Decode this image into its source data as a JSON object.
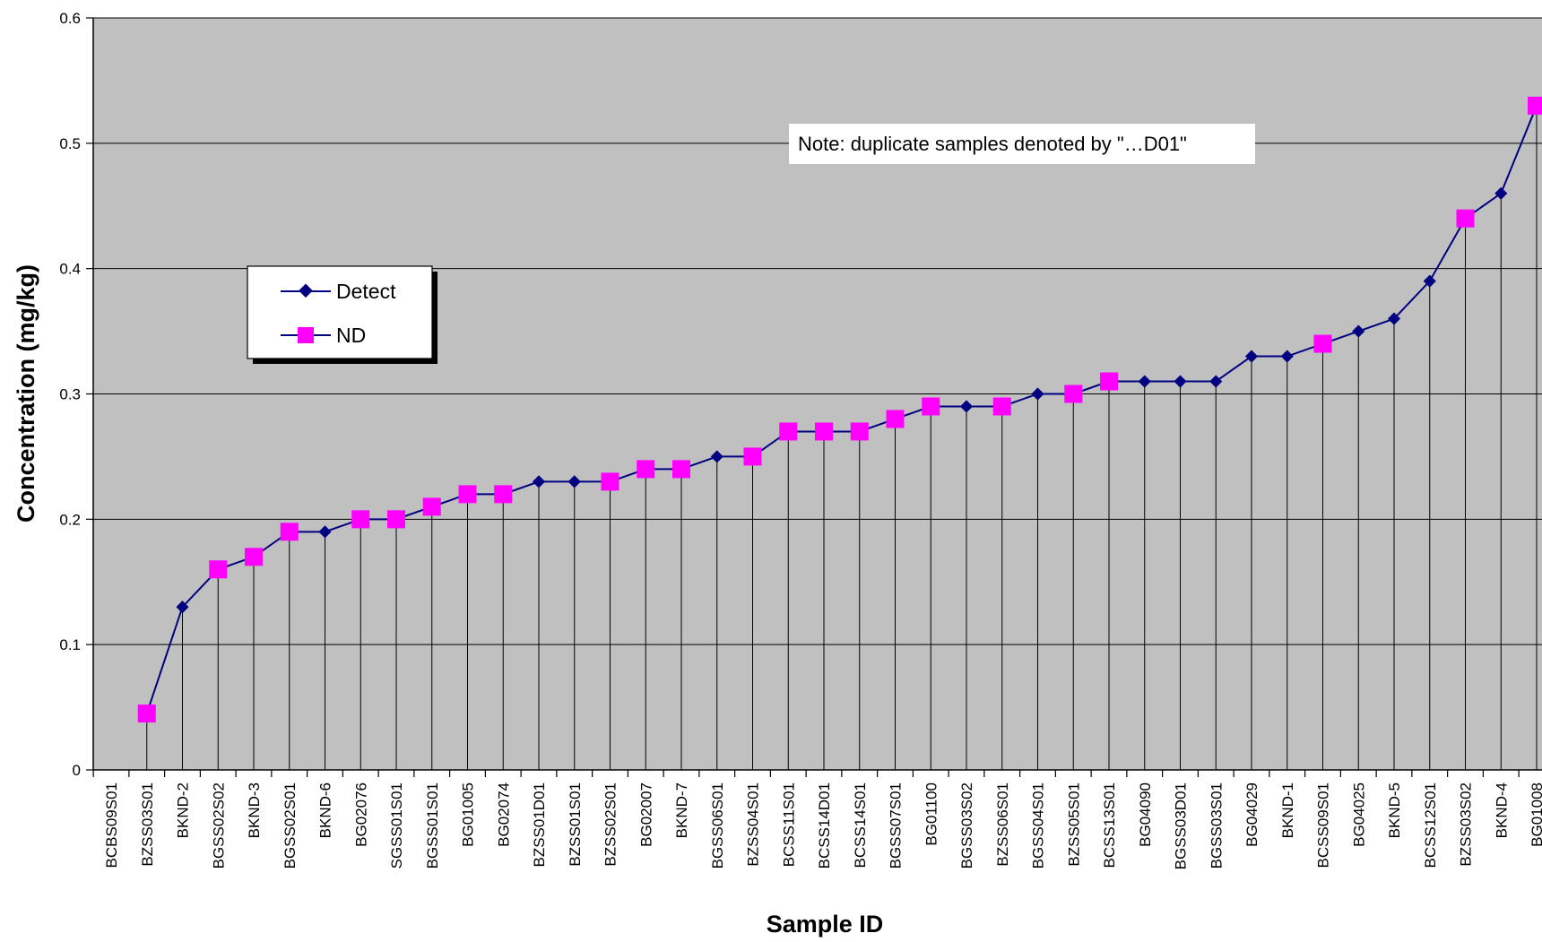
{
  "chart_data": {
    "type": "line",
    "title": "",
    "xlabel": "Sample ID",
    "ylabel": "Concentration (mg/kg)",
    "ylim": [
      0,
      0.6
    ],
    "yticks": [
      "0",
      "0.1",
      "0.2",
      "0.3",
      "0.4",
      "0.5",
      "0.6"
    ],
    "grid": "horizontal",
    "drop_lines": true,
    "legend_position": "upper-left",
    "note": "Note: duplicate samples denoted by \"…D01\"",
    "colors": {
      "plot_background": "#c0c0c0",
      "line": "#000080",
      "detect_marker": "#000080",
      "nd_marker": "#ff00ff",
      "drop_line": "#000000",
      "grid": "#000000"
    },
    "categories": [
      "BCBS09S01",
      "BZSS03S01",
      "BKND-2",
      "BGSS02S02",
      "BKND-3",
      "BGSS02S01",
      "BKND-6",
      "BG02076",
      "SGSS01S01",
      "BGSS01S01",
      "BG01005",
      "BG02074",
      "BZSS01D01",
      "BZSS01S01",
      "BZSS02S01",
      "BG02007",
      "BKND-7",
      "BGSS06S01",
      "BZSS04S01",
      "BCSS11S01",
      "BCSS14D01",
      "BCSS14S01",
      "BGSS07S01",
      "BG01100",
      "BGSS03S02",
      "BZSS06S01",
      "BGSS04S01",
      "BZSS05S01",
      "BCSS13S01",
      "BG04090",
      "BGSS03D01",
      "BGSS03S01",
      "BG04029",
      "BKND-1",
      "BCSS09S01",
      "BG04025",
      "BKND-5",
      "BCSS12S01",
      "BZSS03S02",
      "BKND-4",
      "BG01008"
    ],
    "series": [
      {
        "name": "Detect",
        "marker": "diamond",
        "values": [
          null,
          null,
          0.13,
          null,
          null,
          null,
          0.19,
          null,
          null,
          null,
          null,
          null,
          0.23,
          0.23,
          null,
          null,
          null,
          0.25,
          null,
          null,
          null,
          null,
          null,
          null,
          0.29,
          null,
          0.3,
          null,
          null,
          0.31,
          0.31,
          0.31,
          0.33,
          0.33,
          null,
          0.35,
          0.36,
          0.39,
          null,
          0.46,
          null
        ]
      },
      {
        "name": "ND",
        "marker": "square",
        "values": [
          null,
          0.045,
          null,
          0.16,
          0.17,
          0.19,
          null,
          0.2,
          0.2,
          0.21,
          0.22,
          0.22,
          null,
          null,
          0.23,
          0.24,
          0.24,
          null,
          0.25,
          0.27,
          0.27,
          0.27,
          0.28,
          0.29,
          null,
          0.29,
          null,
          0.3,
          0.31,
          null,
          null,
          null,
          null,
          null,
          0.34,
          null,
          null,
          null,
          0.44,
          null,
          0.53
        ]
      }
    ]
  }
}
